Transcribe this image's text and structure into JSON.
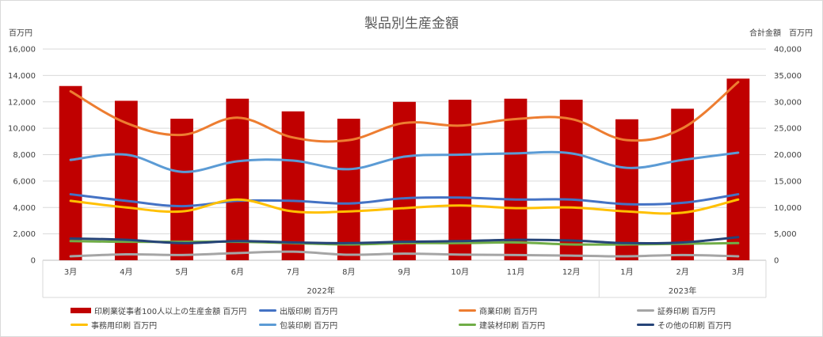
{
  "chart_data": {
    "type": "bar",
    "title": "製品別生産金額",
    "left_unit": "百万円",
    "right_unit": "合計金額　百万円",
    "categories": [
      "3月",
      "4月",
      "5月",
      "6月",
      "7月",
      "8月",
      "9月",
      "10月",
      "11月",
      "12月",
      "1月",
      "2月",
      "3月"
    ],
    "year_groups": [
      {
        "label": "2022年",
        "start": 0,
        "end": 9
      },
      {
        "label": "2023年",
        "start": 10,
        "end": 12
      }
    ],
    "y_left": {
      "min": 0,
      "max": 16000,
      "ticks": [
        "0",
        "2,000",
        "4,000",
        "6,000",
        "8,000",
        "10,000",
        "12,000",
        "14,000",
        "16,000"
      ]
    },
    "y_right": {
      "min": 0,
      "max": 40000,
      "ticks": [
        "0",
        "5,000",
        "10,000",
        "15,000",
        "20,000",
        "25,000",
        "30,000",
        "35,000",
        "40,000"
      ]
    },
    "series": [
      {
        "name": "印刷業従事者100人以上の生産金額 百万円",
        "type": "bar",
        "axis": "right",
        "color": "#c00000",
        "values": [
          33000,
          30200,
          26800,
          30600,
          28200,
          26800,
          30000,
          30400,
          30600,
          30400,
          26700,
          28700,
          34400
        ]
      },
      {
        "name": "出版印刷 百万円",
        "type": "line",
        "axis": "left",
        "color": "#4472c4",
        "values": [
          5000,
          4500,
          4100,
          4500,
          4500,
          4300,
          4700,
          4750,
          4600,
          4600,
          4250,
          4350,
          5000
        ]
      },
      {
        "name": "商業印刷 百万円",
        "type": "line",
        "axis": "left",
        "color": "#ed7d31",
        "values": [
          12800,
          10400,
          9500,
          10800,
          9300,
          9100,
          10400,
          10200,
          10700,
          10700,
          9100,
          10000,
          13500
        ]
      },
      {
        "name": "証券印刷 百万円",
        "type": "line",
        "axis": "left",
        "color": "#a5a5a5",
        "values": [
          300,
          450,
          400,
          550,
          650,
          420,
          500,
          430,
          400,
          350,
          300,
          400,
          300
        ]
      },
      {
        "name": "事務用印刷 百万円",
        "type": "line",
        "axis": "left",
        "color": "#ffc000",
        "values": [
          4500,
          4000,
          3700,
          4600,
          3700,
          3700,
          3950,
          4150,
          3950,
          4000,
          3700,
          3600,
          4600
        ]
      },
      {
        "name": "包装印刷 百万円",
        "type": "line",
        "axis": "left",
        "color": "#5b9bd5",
        "values": [
          7600,
          8000,
          6700,
          7500,
          7550,
          6900,
          7850,
          8000,
          8100,
          8100,
          7000,
          7600,
          8150
        ]
      },
      {
        "name": "建装材印刷 百万円",
        "type": "line",
        "axis": "left",
        "color": "#70ad47",
        "values": [
          1450,
          1400,
          1400,
          1400,
          1300,
          1200,
          1300,
          1300,
          1350,
          1200,
          1200,
          1250,
          1300
        ]
      },
      {
        "name": "その他の印刷 百万円",
        "type": "line",
        "axis": "left",
        "color": "#264478",
        "values": [
          1650,
          1550,
          1300,
          1450,
          1350,
          1300,
          1400,
          1450,
          1550,
          1500,
          1300,
          1350,
          1750
        ]
      }
    ],
    "grid": "horizontal",
    "legend_position": "bottom"
  }
}
